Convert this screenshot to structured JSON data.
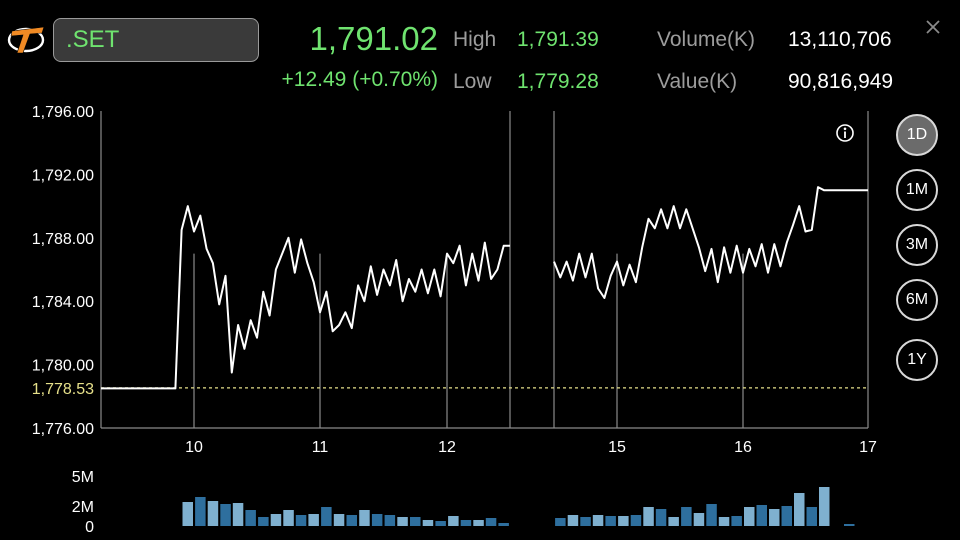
{
  "quote": {
    "symbol": ".SET",
    "last": "1,791.02",
    "change": "+12.49 (+0.70%)",
    "high_label": "High",
    "high": "1,791.39",
    "low_label": "Low",
    "low": "1,779.28",
    "volume_label": "Volume(K)",
    "volume": "13,110,706",
    "value_label": "Value(K)",
    "value": "90,816,949"
  },
  "icons": {
    "logo": "settrade-logo-icon",
    "close": "close-icon",
    "info": "info-icon"
  },
  "periods": [
    {
      "label": "1D",
      "active": true
    },
    {
      "label": "1M",
      "active": false
    },
    {
      "label": "3M",
      "active": false
    },
    {
      "label": "6M",
      "active": false
    },
    {
      "label": "1Y",
      "active": false
    }
  ],
  "colors": {
    "up": "#6fe36f",
    "baseline": "#e6e08a",
    "volume_dark": "#2e6f9e",
    "volume_light": "#7fb0cf"
  },
  "chart_data": [
    {
      "type": "line",
      "ylim": [
        1776,
        1796
      ],
      "y_ticks": [
        "1,796.00",
        "1,792.00",
        "1,788.00",
        "1,784.00",
        "1,780.00",
        "1,776.00"
      ],
      "y_tick_values": [
        1796,
        1792,
        1788,
        1784,
        1780,
        1776
      ],
      "baseline": {
        "label": "1,778.53",
        "value": 1778.53
      },
      "x_ticks": [
        {
          "label": "10",
          "t": 10
        },
        {
          "label": "11",
          "t": 11
        },
        {
          "label": "12",
          "t": 12
        },
        {
          "label": "15",
          "t": 15
        },
        {
          "label": "16",
          "t": 16
        },
        {
          "label": "17",
          "t": 17
        }
      ],
      "xlim": [
        9.25,
        17
      ],
      "session_gap": [
        12.5,
        14.5
      ],
      "grid": true,
      "series": [
        {
          "segments": [
            [
              [
                9.25,
                1778.5
              ],
              [
                9.85,
                1778.5
              ],
              [
                9.9,
                1788.5
              ],
              [
                9.95,
                1790.0
              ],
              [
                10.0,
                1788.4
              ],
              [
                10.05,
                1789.4
              ],
              [
                10.1,
                1787.3
              ],
              [
                10.15,
                1786.4
              ],
              [
                10.2,
                1783.8
              ],
              [
                10.25,
                1785.6
              ],
              [
                10.3,
                1779.5
              ],
              [
                10.35,
                1782.5
              ],
              [
                10.4,
                1781.0
              ],
              [
                10.45,
                1782.8
              ],
              [
                10.5,
                1781.7
              ],
              [
                10.55,
                1784.6
              ],
              [
                10.6,
                1783.1
              ],
              [
                10.65,
                1786.0
              ],
              [
                10.7,
                1787.0
              ],
              [
                10.75,
                1788.0
              ],
              [
                10.8,
                1785.8
              ],
              [
                10.85,
                1787.9
              ],
              [
                10.9,
                1786.4
              ],
              [
                10.95,
                1785.2
              ],
              [
                11.0,
                1783.3
              ],
              [
                11.05,
                1784.6
              ],
              [
                11.1,
                1782.1
              ],
              [
                11.15,
                1782.5
              ],
              [
                11.2,
                1783.3
              ],
              [
                11.25,
                1782.3
              ],
              [
                11.3,
                1785.0
              ],
              [
                11.35,
                1784.0
              ],
              [
                11.4,
                1786.2
              ],
              [
                11.45,
                1784.4
              ],
              [
                11.5,
                1786.0
              ],
              [
                11.55,
                1785.0
              ],
              [
                11.6,
                1786.6
              ],
              [
                11.65,
                1784.0
              ],
              [
                11.7,
                1785.4
              ],
              [
                11.75,
                1784.6
              ],
              [
                11.8,
                1786.0
              ],
              [
                11.85,
                1784.5
              ],
              [
                11.9,
                1786.0
              ],
              [
                11.95,
                1784.3
              ],
              [
                12.0,
                1787.0
              ],
              [
                12.05,
                1786.4
              ],
              [
                12.1,
                1787.5
              ],
              [
                12.15,
                1785.0
              ],
              [
                12.2,
                1787.0
              ],
              [
                12.25,
                1785.3
              ],
              [
                12.3,
                1787.7
              ],
              [
                12.35,
                1785.4
              ],
              [
                12.4,
                1786.0
              ],
              [
                12.45,
                1787.5
              ],
              [
                12.5,
                1787.5
              ]
            ],
            [
              [
                14.5,
                1786.5
              ],
              [
                14.55,
                1785.5
              ],
              [
                14.6,
                1786.5
              ],
              [
                14.65,
                1785.3
              ],
              [
                14.7,
                1787.0
              ],
              [
                14.75,
                1785.5
              ],
              [
                14.8,
                1787.0
              ],
              [
                14.85,
                1784.8
              ],
              [
                14.9,
                1784.2
              ],
              [
                14.95,
                1785.6
              ],
              [
                15.0,
                1786.5
              ],
              [
                15.05,
                1785.0
              ],
              [
                15.1,
                1786.3
              ],
              [
                15.15,
                1785.2
              ],
              [
                15.2,
                1787.4
              ],
              [
                15.25,
                1789.2
              ],
              [
                15.3,
                1788.6
              ],
              [
                15.35,
                1789.8
              ],
              [
                15.4,
                1788.6
              ],
              [
                15.45,
                1790.0
              ],
              [
                15.5,
                1788.6
              ],
              [
                15.55,
                1789.8
              ],
              [
                15.6,
                1788.6
              ],
              [
                15.65,
                1787.4
              ],
              [
                15.7,
                1785.9
              ],
              [
                15.75,
                1787.3
              ],
              [
                15.8,
                1785.2
              ],
              [
                15.85,
                1787.4
              ],
              [
                15.9,
                1785.8
              ],
              [
                15.95,
                1787.5
              ],
              [
                16.0,
                1785.8
              ],
              [
                16.05,
                1787.3
              ],
              [
                16.1,
                1786.2
              ],
              [
                16.15,
                1787.6
              ],
              [
                16.2,
                1785.8
              ],
              [
                16.25,
                1787.6
              ],
              [
                16.3,
                1786.2
              ],
              [
                16.35,
                1787.7
              ],
              [
                16.4,
                1788.8
              ],
              [
                16.45,
                1790.0
              ],
              [
                16.5,
                1788.4
              ],
              [
                16.55,
                1788.5
              ],
              [
                16.6,
                1791.2
              ],
              [
                16.65,
                1791.0
              ],
              [
                17.0,
                1791.0
              ]
            ]
          ]
        }
      ]
    },
    {
      "type": "bar",
      "ylim": [
        0,
        5
      ],
      "y_ticks": [
        "5M",
        "2M",
        "0"
      ],
      "y_tick_values": [
        5,
        2,
        0
      ],
      "unit": "M",
      "bars": [
        {
          "t": 9.95,
          "v": 2.4,
          "shade": "light"
        },
        {
          "t": 10.05,
          "v": 2.9,
          "shade": "dark"
        },
        {
          "t": 10.15,
          "v": 2.5,
          "shade": "light"
        },
        {
          "t": 10.25,
          "v": 2.2,
          "shade": "dark"
        },
        {
          "t": 10.35,
          "v": 2.3,
          "shade": "light"
        },
        {
          "t": 10.45,
          "v": 1.6,
          "shade": "dark"
        },
        {
          "t": 10.55,
          "v": 0.9,
          "shade": "dark"
        },
        {
          "t": 10.65,
          "v": 1.2,
          "shade": "light"
        },
        {
          "t": 10.75,
          "v": 1.6,
          "shade": "light"
        },
        {
          "t": 10.85,
          "v": 1.1,
          "shade": "dark"
        },
        {
          "t": 10.95,
          "v": 1.2,
          "shade": "light"
        },
        {
          "t": 11.05,
          "v": 1.9,
          "shade": "dark"
        },
        {
          "t": 11.15,
          "v": 1.2,
          "shade": "light"
        },
        {
          "t": 11.25,
          "v": 1.1,
          "shade": "dark"
        },
        {
          "t": 11.35,
          "v": 1.6,
          "shade": "light"
        },
        {
          "t": 11.45,
          "v": 1.2,
          "shade": "dark"
        },
        {
          "t": 11.55,
          "v": 1.1,
          "shade": "dark"
        },
        {
          "t": 11.65,
          "v": 0.9,
          "shade": "light"
        },
        {
          "t": 11.75,
          "v": 0.9,
          "shade": "dark"
        },
        {
          "t": 11.85,
          "v": 0.6,
          "shade": "light"
        },
        {
          "t": 11.95,
          "v": 0.5,
          "shade": "dark"
        },
        {
          "t": 12.05,
          "v": 1.0,
          "shade": "light"
        },
        {
          "t": 12.15,
          "v": 0.6,
          "shade": "dark"
        },
        {
          "t": 12.25,
          "v": 0.6,
          "shade": "light"
        },
        {
          "t": 12.35,
          "v": 0.8,
          "shade": "dark"
        },
        {
          "t": 12.45,
          "v": 0.3,
          "shade": "dark"
        },
        {
          "t": 14.55,
          "v": 0.8,
          "shade": "dark"
        },
        {
          "t": 14.65,
          "v": 1.1,
          "shade": "light"
        },
        {
          "t": 14.75,
          "v": 0.9,
          "shade": "dark"
        },
        {
          "t": 14.85,
          "v": 1.1,
          "shade": "light"
        },
        {
          "t": 14.95,
          "v": 1.0,
          "shade": "dark"
        },
        {
          "t": 15.05,
          "v": 1.0,
          "shade": "light"
        },
        {
          "t": 15.15,
          "v": 1.1,
          "shade": "dark"
        },
        {
          "t": 15.25,
          "v": 1.9,
          "shade": "light"
        },
        {
          "t": 15.35,
          "v": 1.7,
          "shade": "dark"
        },
        {
          "t": 15.45,
          "v": 0.9,
          "shade": "light"
        },
        {
          "t": 15.55,
          "v": 1.9,
          "shade": "dark"
        },
        {
          "t": 15.65,
          "v": 1.3,
          "shade": "light"
        },
        {
          "t": 15.75,
          "v": 2.2,
          "shade": "dark"
        },
        {
          "t": 15.85,
          "v": 0.9,
          "shade": "light"
        },
        {
          "t": 15.95,
          "v": 1.0,
          "shade": "dark"
        },
        {
          "t": 16.05,
          "v": 1.9,
          "shade": "light"
        },
        {
          "t": 16.15,
          "v": 2.1,
          "shade": "dark"
        },
        {
          "t": 16.25,
          "v": 1.7,
          "shade": "light"
        },
        {
          "t": 16.35,
          "v": 2.0,
          "shade": "dark"
        },
        {
          "t": 16.45,
          "v": 3.3,
          "shade": "light"
        },
        {
          "t": 16.55,
          "v": 1.9,
          "shade": "dark"
        },
        {
          "t": 16.65,
          "v": 3.9,
          "shade": "light"
        },
        {
          "t": 16.85,
          "v": 0.2,
          "shade": "dark"
        }
      ]
    }
  ]
}
